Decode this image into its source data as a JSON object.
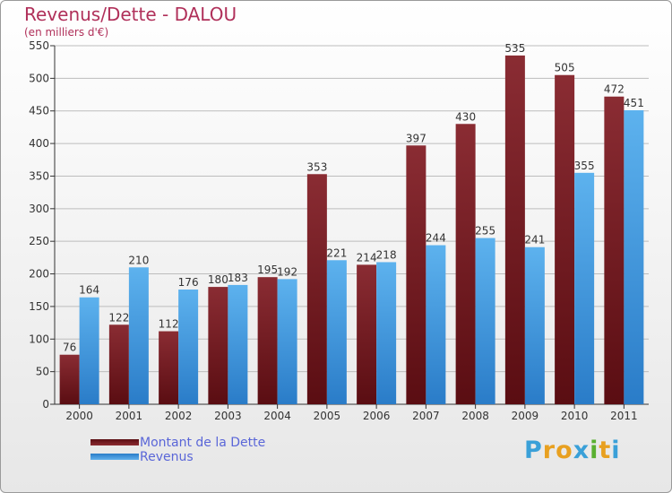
{
  "chart_data": {
    "type": "bar",
    "title": "Revenus/Dette - DALOU",
    "subtitle": "(en milliers d'€)",
    "categories": [
      "2000",
      "2001",
      "2002",
      "2003",
      "2004",
      "2005",
      "2006",
      "2007",
      "2008",
      "2009",
      "2010",
      "2011"
    ],
    "series": [
      {
        "name": "Montant de la Dette",
        "color": "#7a1c22",
        "values": [
          76,
          122,
          112,
          180,
          195,
          353,
          214,
          397,
          430,
          535,
          505,
          472
        ]
      },
      {
        "name": "Revenus",
        "color": "#4a9fe0",
        "values": [
          164,
          210,
          176,
          183,
          192,
          221,
          218,
          244,
          255,
          241,
          355,
          451
        ]
      }
    ],
    "ylim": [
      0,
      550
    ],
    "yticks": [
      0,
      50,
      100,
      150,
      200,
      250,
      300,
      350,
      400,
      450,
      500,
      550
    ],
    "grid": true,
    "legend_position": "bottom-left"
  },
  "legend": {
    "dette_label": "Montant de la Dette",
    "revenus_label": "Revenus"
  },
  "logo": {
    "text": "Proxiti"
  }
}
